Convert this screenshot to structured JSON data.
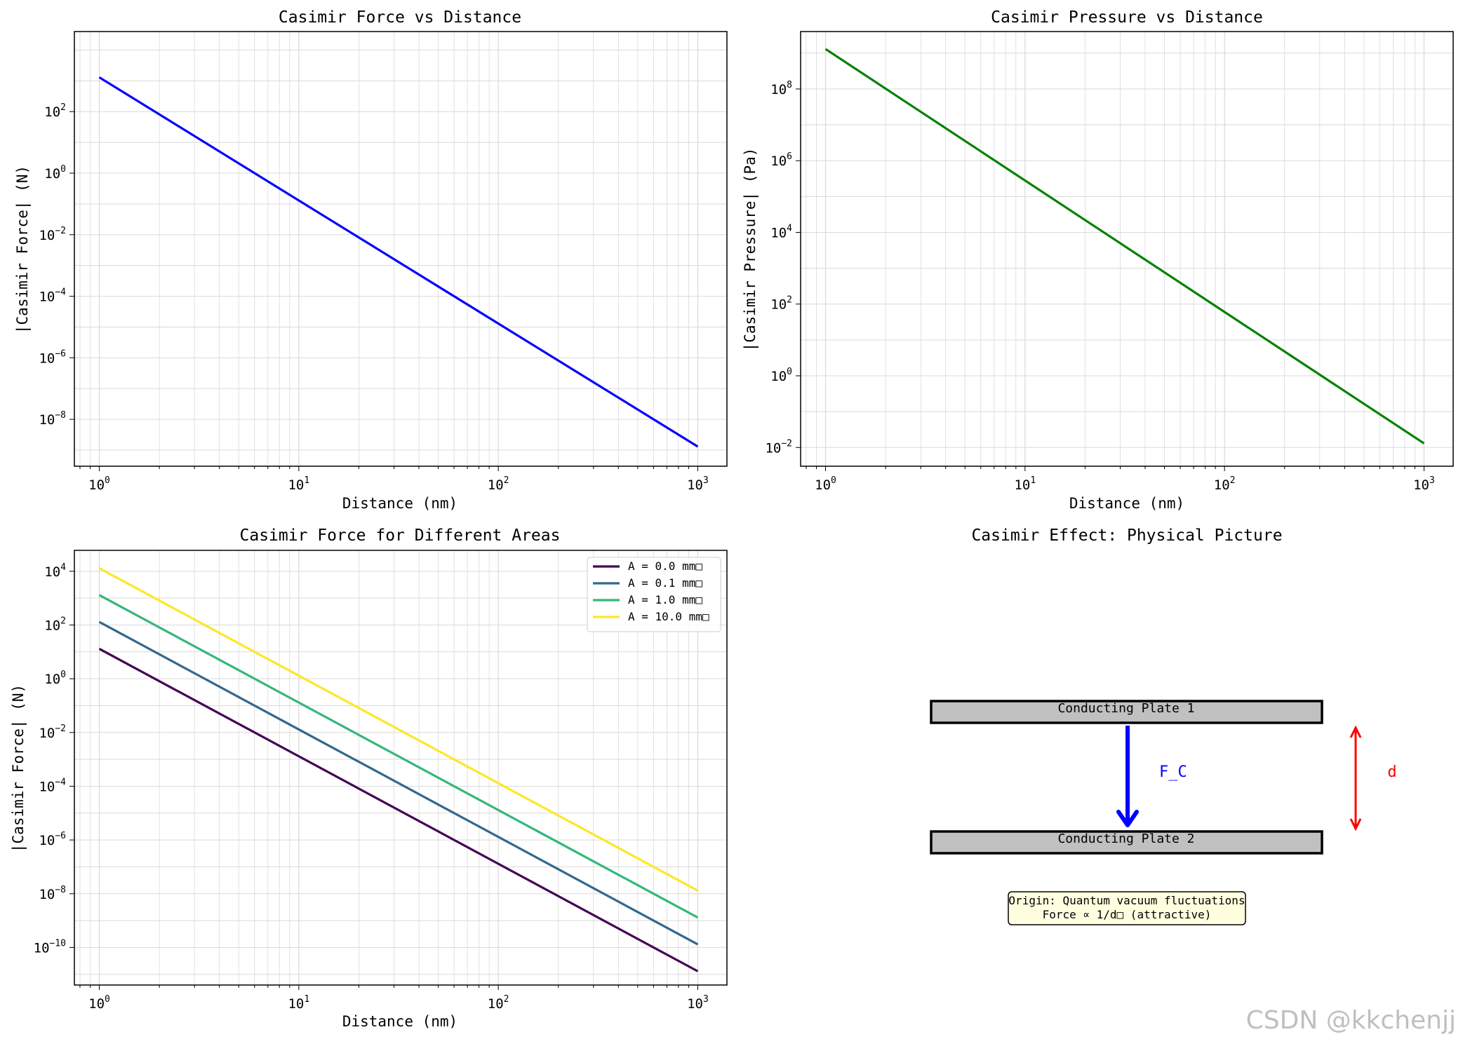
{
  "chart_data": [
    {
      "type": "line",
      "title": "Casimir Force vs Distance",
      "xlabel": "Distance (nm)",
      "ylabel": "|Casimir Force| (N)",
      "xscale": "log",
      "yscale": "log",
      "xlim": [
        0.75,
        1400
      ],
      "ylim": [
        3e-10,
        40000
      ],
      "grid": true,
      "xticks": [
        {
          "base": "10",
          "exp": "0",
          "v": 1
        },
        {
          "base": "10",
          "exp": "1",
          "v": 10
        },
        {
          "base": "10",
          "exp": "2",
          "v": 100
        },
        {
          "base": "10",
          "exp": "3",
          "v": 1000
        }
      ],
      "yticks": [
        {
          "base": "10",
          "exp": "2",
          "v": 100
        },
        {
          "base": "10",
          "exp": "0",
          "v": 1
        },
        {
          "base": "10",
          "exp": "−2",
          "v": 0.01
        },
        {
          "base": "10",
          "exp": "−4",
          "v": 0.0001
        },
        {
          "base": "10",
          "exp": "−6",
          "v": 1e-06
        },
        {
          "base": "10",
          "exp": "−8",
          "v": 1e-08
        }
      ],
      "series": [
        {
          "color": "#0000ff",
          "x": [
            1,
            1000
          ],
          "y": [
            1300,
            1.3e-09
          ]
        }
      ]
    },
    {
      "type": "line",
      "title": "Casimir Pressure vs Distance",
      "xlabel": "Distance (nm)",
      "ylabel": "|Casimir Pressure| (Pa)",
      "xscale": "log",
      "yscale": "log",
      "xlim": [
        0.75,
        1400
      ],
      "ylim": [
        0.003,
        4000000000.0
      ],
      "grid": true,
      "xticks": [
        {
          "base": "10",
          "exp": "0",
          "v": 1
        },
        {
          "base": "10",
          "exp": "1",
          "v": 10
        },
        {
          "base": "10",
          "exp": "2",
          "v": 100
        },
        {
          "base": "10",
          "exp": "3",
          "v": 1000
        }
      ],
      "yticks": [
        {
          "base": "10",
          "exp": "8",
          "v": 100000000
        },
        {
          "base": "10",
          "exp": "6",
          "v": 1000000
        },
        {
          "base": "10",
          "exp": "4",
          "v": 10000
        },
        {
          "base": "10",
          "exp": "2",
          "v": 100
        },
        {
          "base": "10",
          "exp": "0",
          "v": 1
        },
        {
          "base": "10",
          "exp": "−2",
          "v": 0.01
        }
      ],
      "series": [
        {
          "color": "#008000",
          "x": [
            1,
            1000
          ],
          "y": [
            1300000000.0,
            0.013
          ]
        }
      ]
    },
    {
      "type": "line",
      "title": "Casimir Force for Different Areas",
      "xlabel": "Distance (nm)",
      "ylabel": "|Casimir Force| (N)",
      "xscale": "log",
      "yscale": "log",
      "xlim": [
        0.75,
        1400
      ],
      "ylim": [
        4e-12,
        60000
      ],
      "grid": true,
      "legend": "top-right",
      "xticks": [
        {
          "base": "10",
          "exp": "0",
          "v": 1
        },
        {
          "base": "10",
          "exp": "1",
          "v": 10
        },
        {
          "base": "10",
          "exp": "2",
          "v": 100
        },
        {
          "base": "10",
          "exp": "3",
          "v": 1000
        }
      ],
      "yticks": [
        {
          "base": "10",
          "exp": "4",
          "v": 10000
        },
        {
          "base": "10",
          "exp": "2",
          "v": 100
        },
        {
          "base": "10",
          "exp": "0",
          "v": 1
        },
        {
          "base": "10",
          "exp": "−2",
          "v": 0.01
        },
        {
          "base": "10",
          "exp": "−4",
          "v": 0.0001
        },
        {
          "base": "10",
          "exp": "−6",
          "v": 1e-06
        },
        {
          "base": "10",
          "exp": "−8",
          "v": 1e-08
        },
        {
          "base": "10",
          "exp": "−10",
          "v": 1e-10
        }
      ],
      "series": [
        {
          "name": "A = 0.0 mm□",
          "color": "#440154",
          "x": [
            1,
            1000
          ],
          "y": [
            13,
            1.3e-11
          ]
        },
        {
          "name": "A = 0.1 mm□",
          "color": "#31688e",
          "x": [
            1,
            1000
          ],
          "y": [
            130,
            1.3e-10
          ]
        },
        {
          "name": "A = 1.0 mm□",
          "color": "#35b779",
          "x": [
            1,
            1000
          ],
          "y": [
            1300,
            1.3e-09
          ]
        },
        {
          "name": "A = 10.0 mm□",
          "color": "#fde725",
          "x": [
            1,
            1000
          ],
          "y": [
            13000,
            1.3e-08
          ]
        }
      ]
    }
  ],
  "diagram": {
    "title": "Casimir Effect: Physical Picture",
    "plate1": "Conducting Plate 1",
    "plate2": "Conducting Plate 2",
    "force_label": "F_C",
    "distance_label": "d",
    "note_line1": "Origin: Quantum vacuum fluctuations",
    "note_line2": "Force ∝ 1/d□ (attractive)",
    "plate_color": "#c0c0c0",
    "force_color": "#0000ff",
    "distance_color": "#ff0000",
    "note_bg": "#ffffe0"
  },
  "watermark": "CSDN @kkchenjj"
}
